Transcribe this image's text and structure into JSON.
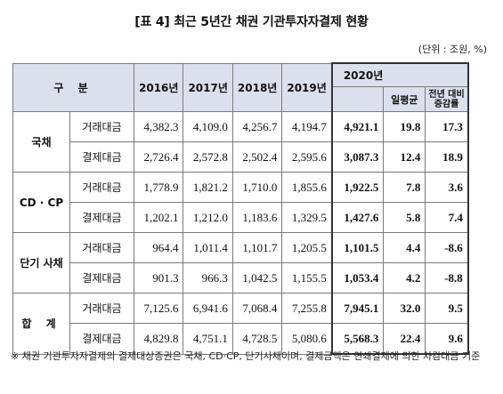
{
  "title": "[표 4] 최근 5년간 채권 기관투자자결제 현황",
  "unit": "(단위 : 조원, %)",
  "header": {
    "category": "구 분",
    "years": [
      "2016년",
      "2017년",
      "2018년",
      "2019년"
    ],
    "year2020": "2020년",
    "daily_avg": "일평균",
    "yoy": "전년 대비 증감률"
  },
  "rows": [
    {
      "category": "국채",
      "sub": "거래대금",
      "v2016": "4,382.3",
      "v2017": "4,109.0",
      "v2018": "4,256.7",
      "v2019": "4,194.7",
      "v2020": "4,921.1",
      "avg": "19.8",
      "yoy": "17.3"
    },
    {
      "category": "",
      "sub": "결제대금",
      "v2016": "2,726.4",
      "v2017": "2,572.8",
      "v2018": "2,502.4",
      "v2019": "2,595.6",
      "v2020": "3,087.3",
      "avg": "12.4",
      "yoy": "18.9"
    },
    {
      "category": "CD · CP",
      "sub": "거래대금",
      "v2016": "1,778.9",
      "v2017": "1,821.2",
      "v2018": "1,710.0",
      "v2019": "1,855.6",
      "v2020": "1,922.5",
      "avg": "7.8",
      "yoy": "3.6"
    },
    {
      "category": "",
      "sub": "결제대금",
      "v2016": "1,202.1",
      "v2017": "1,212.0",
      "v2018": "1,183.6",
      "v2019": "1,329.5",
      "v2020": "1,427.6",
      "avg": "5.8",
      "yoy": "7.4"
    },
    {
      "category": "단기 사채",
      "sub": "거래대금",
      "v2016": "964.4",
      "v2017": "1,011.4",
      "v2018": "1,101.7",
      "v2019": "1,205.5",
      "v2020": "1,101.5",
      "avg": "4.4",
      "yoy": "-8.6"
    },
    {
      "category": "",
      "sub": "결제대금",
      "v2016": "901.3",
      "v2017": "966.3",
      "v2018": "1,042.5",
      "v2019": "1,155.5",
      "v2020": "1,053.4",
      "avg": "4.2",
      "yoy": "-8.8"
    },
    {
      "category": "합 계",
      "sub": "거래대금",
      "v2016": "7,125.6",
      "v2017": "6,941.6",
      "v2018": "7,068.4",
      "v2019": "7,255.8",
      "v2020": "7,945.1",
      "avg": "32.0",
      "yoy": "9.5"
    },
    {
      "category": "",
      "sub": "결제대금",
      "v2016": "4,829.8",
      "v2017": "4,751.1",
      "v2018": "4,728.5",
      "v2019": "5,080.6",
      "v2020": "5,568.3",
      "avg": "22.4",
      "yoy": "9.6"
    }
  ],
  "note": "※ 채권 기관투자자결제의 결제대상증권은 국채, CD·CP, 단기사채이며, 결제금액은 연쇄결제에 의한 차감대금 기준"
}
